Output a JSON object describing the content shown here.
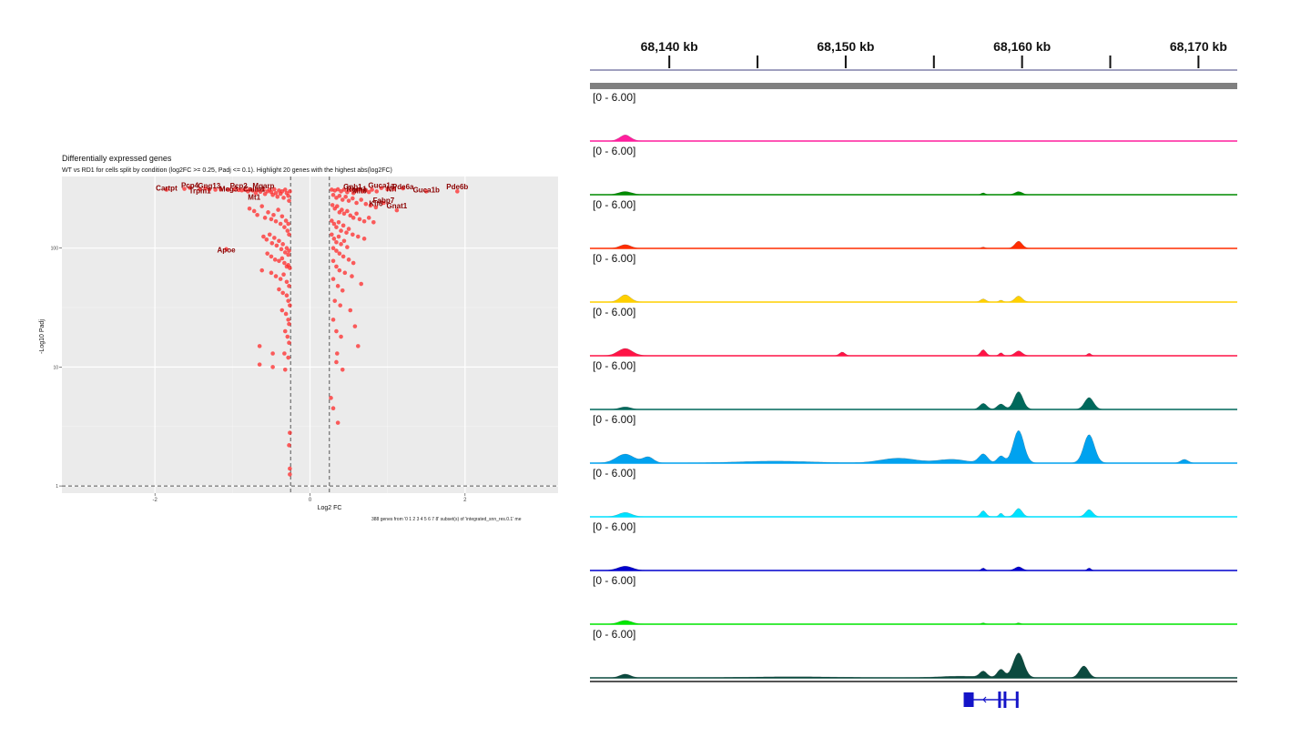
{
  "chart_data": [
    {
      "type": "scatter",
      "title": "Differentially expressed genes",
      "subtitle": "WT vs RD1 for cells split by condition (log2FC >= 0.25, Padj <= 0.1). Highlight 20 genes with the highest abs(log2FC)",
      "xlabel": "Log2 FC",
      "ylabel": "-Log10 Padj",
      "caption": "388 genes from '0 1 2 3 4 5 6 7 8' subset(s) of 'integrated_snn_res.0.1' me",
      "x_ticks": [
        "-2",
        "0",
        "2"
      ],
      "x_tick_values": [
        -2,
        0,
        2
      ],
      "y_ticks": [
        "1",
        "10",
        "100"
      ],
      "y_tick_values": [
        1,
        10,
        100
      ],
      "y_scale": "log",
      "xlim": [
        -3.2,
        3.2
      ],
      "ylim": [
        0.87,
        400
      ],
      "vlines": [
        -0.25,
        0.25
      ],
      "hline": 1,
      "grid": true,
      "point_color": "#ff2a2a",
      "points": [
        [
          -1.85,
          310
        ],
        [
          -1.62,
          315
        ],
        [
          -1.55,
          322
        ],
        [
          -1.42,
          312
        ],
        [
          -1.35,
          318
        ],
        [
          -1.3,
          310
        ],
        [
          -1.22,
          310
        ],
        [
          -1.15,
          312
        ],
        [
          -1.05,
          310
        ],
        [
          -0.98,
          312
        ],
        [
          -0.92,
          308
        ],
        [
          -0.88,
          306
        ],
        [
          -0.84,
          310
        ],
        [
          -0.8,
          300
        ],
        [
          -0.78,
          312
        ],
        [
          -0.74,
          305
        ],
        [
          -0.7,
          290
        ],
        [
          -0.68,
          308
        ],
        [
          -0.64,
          298
        ],
        [
          -0.6,
          310
        ],
        [
          -0.58,
          285
        ],
        [
          -0.55,
          300
        ],
        [
          -0.52,
          310
        ],
        [
          -0.5,
          296
        ],
        [
          -0.48,
          280
        ],
        [
          -0.46,
          312
        ],
        [
          -0.44,
          290
        ],
        [
          -0.42,
          270
        ],
        [
          -0.4,
          305
        ],
        [
          -0.38,
          286
        ],
        [
          -0.36,
          300
        ],
        [
          -0.34,
          265
        ],
        [
          -0.32,
          310
        ],
        [
          -0.3,
          290
        ],
        [
          -0.28,
          275
        ],
        [
          -0.27,
          250
        ],
        [
          -0.26,
          300
        ],
        [
          -0.78,
          215
        ],
        [
          -0.72,
          205
        ],
        [
          -0.68,
          190
        ],
        [
          -0.62,
          225
        ],
        [
          -0.58,
          180
        ],
        [
          -0.54,
          200
        ],
        [
          -0.5,
          175
        ],
        [
          -0.47,
          190
        ],
        [
          -0.44,
          168
        ],
        [
          -0.41,
          210
        ],
        [
          -0.38,
          160
        ],
        [
          -0.36,
          185
        ],
        [
          -0.33,
          150
        ],
        [
          -0.31,
          170
        ],
        [
          -0.29,
          140
        ],
        [
          -0.28,
          160
        ],
        [
          -0.27,
          130
        ],
        [
          -0.6,
          125
        ],
        [
          -0.56,
          118
        ],
        [
          -0.52,
          130
        ],
        [
          -0.49,
          110
        ],
        [
          -0.46,
          122
        ],
        [
          -0.43,
          105
        ],
        [
          -0.4,
          115
        ],
        [
          -0.37,
          98
        ],
        [
          -0.35,
          108
        ],
        [
          -0.32,
          92
        ],
        [
          -0.3,
          100
        ],
        [
          -0.28,
          88
        ],
        [
          -0.27,
          95
        ],
        [
          -1.08,
          98
        ],
        [
          -0.55,
          90
        ],
        [
          -0.5,
          85
        ],
        [
          -0.45,
          80
        ],
        [
          -0.4,
          78
        ],
        [
          -0.36,
          82
        ],
        [
          -0.33,
          75
        ],
        [
          -0.3,
          70
        ],
        [
          -0.28,
          72
        ],
        [
          -0.26,
          68
        ],
        [
          -0.62,
          65
        ],
        [
          -0.5,
          62
        ],
        [
          -0.44,
          58
        ],
        [
          -0.38,
          55
        ],
        [
          -0.34,
          60
        ],
        [
          -0.3,
          52
        ],
        [
          -0.27,
          48
        ],
        [
          -0.4,
          45
        ],
        [
          -0.35,
          42
        ],
        [
          -0.3,
          40
        ],
        [
          -0.28,
          36
        ],
        [
          -0.26,
          33
        ],
        [
          -0.36,
          30
        ],
        [
          -0.31,
          28
        ],
        [
          -0.28,
          25
        ],
        [
          -0.27,
          23
        ],
        [
          -0.32,
          20
        ],
        [
          -0.29,
          18
        ],
        [
          -0.27,
          16
        ],
        [
          -0.65,
          15
        ],
        [
          -0.48,
          13
        ],
        [
          -0.33,
          13
        ],
        [
          -0.28,
          12
        ],
        [
          -0.65,
          10.5
        ],
        [
          -0.48,
          10
        ],
        [
          -0.32,
          9.5
        ],
        [
          -0.26,
          2.8
        ],
        [
          -0.27,
          2.2
        ],
        [
          -0.26,
          1.4
        ],
        [
          -0.26,
          1.25
        ],
        [
          0.28,
          310
        ],
        [
          0.32,
          305
        ],
        [
          0.36,
          312
        ],
        [
          0.4,
          300
        ],
        [
          0.44,
          310
        ],
        [
          0.48,
          295
        ],
        [
          0.52,
          308
        ],
        [
          0.56,
          290
        ],
        [
          0.6,
          305
        ],
        [
          0.64,
          312
        ],
        [
          0.68,
          300
        ],
        [
          0.72,
          308
        ],
        [
          0.76,
          296
        ],
        [
          0.8,
          310
        ],
        [
          0.86,
          300
        ],
        [
          0.92,
          320
        ],
        [
          1.0,
          312
        ],
        [
          1.08,
          315
        ],
        [
          1.2,
          318
        ],
        [
          1.5,
          300
        ],
        [
          1.9,
          300
        ],
        [
          0.3,
          280
        ],
        [
          0.34,
          265
        ],
        [
          0.38,
          275
        ],
        [
          0.42,
          255
        ],
        [
          0.46,
          270
        ],
        [
          0.5,
          250
        ],
        [
          0.55,
          262
        ],
        [
          0.6,
          240
        ],
        [
          0.66,
          255
        ],
        [
          0.72,
          235
        ],
        [
          0.78,
          228
        ],
        [
          0.85,
          220
        ],
        [
          0.95,
          240
        ],
        [
          1.12,
          208
        ],
        [
          0.29,
          230
        ],
        [
          0.32,
          215
        ],
        [
          0.35,
          225
        ],
        [
          0.38,
          200
        ],
        [
          0.41,
          210
        ],
        [
          0.44,
          195
        ],
        [
          0.48,
          205
        ],
        [
          0.52,
          188
        ],
        [
          0.56,
          180
        ],
        [
          0.6,
          195
        ],
        [
          0.64,
          175
        ],
        [
          0.7,
          168
        ],
        [
          0.76,
          180
        ],
        [
          0.82,
          165
        ],
        [
          0.28,
          170
        ],
        [
          0.31,
          160
        ],
        [
          0.34,
          150
        ],
        [
          0.37,
          165
        ],
        [
          0.4,
          140
        ],
        [
          0.43,
          155
        ],
        [
          0.47,
          135
        ],
        [
          0.5,
          145
        ],
        [
          0.55,
          130
        ],
        [
          0.62,
          125
        ],
        [
          0.7,
          120
        ],
        [
          0.28,
          130
        ],
        [
          0.31,
          120
        ],
        [
          0.34,
          112
        ],
        [
          0.37,
          125
        ],
        [
          0.4,
          108
        ],
        [
          0.44,
          115
        ],
        [
          0.48,
          102
        ],
        [
          0.3,
          100
        ],
        [
          0.34,
          95
        ],
        [
          0.38,
          90
        ],
        [
          0.43,
          85
        ],
        [
          0.5,
          80
        ],
        [
          0.56,
          75
        ],
        [
          0.3,
          78
        ],
        [
          0.34,
          70
        ],
        [
          0.38,
          65
        ],
        [
          0.45,
          62
        ],
        [
          0.54,
          58
        ],
        [
          0.66,
          50
        ],
        [
          0.3,
          55
        ],
        [
          0.36,
          48
        ],
        [
          0.42,
          44
        ],
        [
          0.32,
          36
        ],
        [
          0.39,
          33
        ],
        [
          0.52,
          30
        ],
        [
          0.3,
          25
        ],
        [
          0.34,
          20
        ],
        [
          0.4,
          18
        ],
        [
          0.58,
          22
        ],
        [
          0.35,
          13
        ],
        [
          0.62,
          15
        ],
        [
          0.34,
          11
        ],
        [
          0.42,
          9.5
        ],
        [
          0.27,
          5.5
        ],
        [
          0.3,
          4.5
        ],
        [
          0.36,
          3.4
        ]
      ],
      "labels": [
        {
          "text": "Pcp4",
          "x": -1.55,
          "y": 322
        },
        {
          "text": "Gng13",
          "x": -1.3,
          "y": 318
        },
        {
          "text": "Pcp2",
          "x": -0.92,
          "y": 318
        },
        {
          "text": "Mgarp",
          "x": -0.6,
          "y": 318
        },
        {
          "text": "Cartpt",
          "x": -1.85,
          "y": 305
        },
        {
          "text": "Calm1",
          "x": -0.72,
          "y": 300
        },
        {
          "text": "Meg3",
          "x": -1.05,
          "y": 298
        },
        {
          "text": "Trpm1",
          "x": -1.42,
          "y": 290
        },
        {
          "text": "Mt1",
          "x": -0.72,
          "y": 255
        },
        {
          "text": "Apoe",
          "x": -1.08,
          "y": 92
        },
        {
          "text": "Guca1a",
          "x": 0.92,
          "y": 320
        },
        {
          "text": "Gnb1",
          "x": 0.55,
          "y": 312
        },
        {
          "text": "Pde6a",
          "x": 1.2,
          "y": 312
        },
        {
          "text": "Pde6b",
          "x": 1.9,
          "y": 312
        },
        {
          "text": "Rom1",
          "x": 0.6,
          "y": 300
        },
        {
          "text": "Nrl",
          "x": 1.05,
          "y": 300
        },
        {
          "text": "Guca1b",
          "x": 1.5,
          "y": 295
        },
        {
          "text": "Mlf0",
          "x": 0.64,
          "y": 290
        },
        {
          "text": "Fabp7",
          "x": 0.95,
          "y": 240
        },
        {
          "text": "Gnat1",
          "x": 1.12,
          "y": 215
        },
        {
          "text": "Klf6",
          "x": 0.85,
          "y": 225
        }
      ]
    },
    {
      "type": "area",
      "x_ticks": [
        "68,140 kb",
        "68,150 kb",
        "68,160 kb",
        "68,170 kb"
      ],
      "x_tick_values_kb": [
        68140,
        68150,
        68160,
        68170
      ],
      "xlim_kb": [
        68135.5,
        68172.2
      ],
      "y_range_label": "[0 - 6.00]",
      "ylim": [
        0,
        6
      ],
      "tracks": [
        {
          "color": "#ff1f9d",
          "peaks": [
            [
              68137.5,
              1.0,
              0.3
            ]
          ]
        },
        {
          "color": "#008b00",
          "peaks": [
            [
              68137.5,
              0.5,
              0.35
            ],
            [
              68157.8,
              0.3,
              0.1
            ],
            [
              68159.8,
              0.5,
              0.2
            ]
          ]
        },
        {
          "color": "#ff2d00",
          "peaks": [
            [
              68137.5,
              0.6,
              0.3
            ],
            [
              68157.8,
              0.2,
              0.1
            ],
            [
              68159.8,
              1.2,
              0.2
            ]
          ]
        },
        {
          "color": "#ffd000",
          "peaks": [
            [
              68137.5,
              1.2,
              0.3
            ],
            [
              68157.8,
              0.5,
              0.15
            ],
            [
              68159.8,
              1.0,
              0.2
            ],
            [
              68158.8,
              0.3,
              0.1
            ]
          ]
        },
        {
          "color": "#ff1446",
          "peaks": [
            [
              68137.5,
              1.2,
              0.4
            ],
            [
              68149.8,
              0.6,
              0.15
            ],
            [
              68157.8,
              1.0,
              0.15
            ],
            [
              68158.8,
              0.5,
              0.1
            ],
            [
              68159.8,
              0.8,
              0.2
            ],
            [
              68163.8,
              0.4,
              0.1
            ]
          ]
        },
        {
          "color": "#00695c",
          "peaks": [
            [
              68137.5,
              0.4,
              0.3
            ],
            [
              68157.8,
              1.0,
              0.2
            ],
            [
              68158.8,
              0.9,
              0.2
            ],
            [
              68159.8,
              3.0,
              0.25
            ],
            [
              68163.8,
              2.0,
              0.25
            ]
          ]
        },
        {
          "color": "#00a2ef",
          "peaks": [
            [
              68137.5,
              1.5,
              0.5
            ],
            [
              68138.8,
              1.0,
              0.3
            ],
            [
              68146,
              0.3,
              2.0
            ],
            [
              68153,
              0.8,
              1.0
            ],
            [
              68156,
              0.6,
              0.8
            ],
            [
              68157.8,
              1.5,
              0.25
            ],
            [
              68158.8,
              1.2,
              0.2
            ],
            [
              68159.8,
              5.5,
              0.3
            ],
            [
              68163.8,
              4.8,
              0.3
            ],
            [
              68169.2,
              0.6,
              0.2
            ]
          ]
        },
        {
          "color": "#00e1ff",
          "peaks": [
            [
              68137.5,
              0.7,
              0.35
            ],
            [
              68157.8,
              1.0,
              0.15
            ],
            [
              68158.8,
              0.6,
              0.1
            ],
            [
              68159.8,
              1.4,
              0.2
            ],
            [
              68163.8,
              1.2,
              0.2
            ]
          ]
        },
        {
          "color": "#0000cd",
          "peaks": [
            [
              68137.5,
              0.7,
              0.4
            ],
            [
              68157.8,
              0.4,
              0.1
            ],
            [
              68159.8,
              0.6,
              0.2
            ],
            [
              68163.8,
              0.4,
              0.1
            ]
          ]
        },
        {
          "color": "#00e600",
          "peaks": [
            [
              68137.5,
              0.6,
              0.35
            ],
            [
              68157.8,
              0.2,
              0.1
            ],
            [
              68159.8,
              0.2,
              0.1
            ]
          ]
        },
        {
          "color": "#0b4a3f",
          "peaks": [
            [
              68137.5,
              0.6,
              0.3
            ],
            [
              68147,
              0.15,
              2.5
            ],
            [
              68156.5,
              0.25,
              1.2
            ],
            [
              68157.8,
              1.0,
              0.2
            ],
            [
              68158.8,
              1.4,
              0.2
            ],
            [
              68159.8,
              4.2,
              0.3
            ],
            [
              68163.5,
              2.0,
              0.25
            ]
          ]
        }
      ],
      "gene_color": "#1414c8"
    }
  ]
}
